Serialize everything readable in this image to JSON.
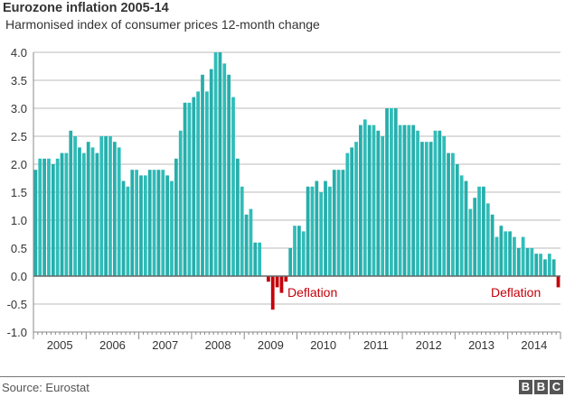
{
  "chart_data": {
    "type": "bar",
    "title": "Eurozone inflation 2005-14",
    "subtitle": "Harmonised index of consumer prices 12-month change",
    "xlabel": "",
    "ylabel": "",
    "ylim": [
      -1.0,
      4.0
    ],
    "yticks": [
      "4.0",
      "3.5",
      "3.0",
      "2.5",
      "2.0",
      "1.5",
      "1.0",
      "0.5",
      "0.0",
      "-0.5",
      "-1.0"
    ],
    "ytick_values": [
      4.0,
      3.5,
      3.0,
      2.5,
      2.0,
      1.5,
      1.0,
      0.5,
      0.0,
      -0.5,
      -1.0
    ],
    "grid": true,
    "x_start": "2005-01",
    "x_frequency": "monthly",
    "year_labels": [
      "2005",
      "2006",
      "2007",
      "2008",
      "2009",
      "2010",
      "2011",
      "2012",
      "2013",
      "2014"
    ],
    "values": [
      1.9,
      2.1,
      2.1,
      2.1,
      2.0,
      2.1,
      2.2,
      2.2,
      2.6,
      2.5,
      2.3,
      2.2,
      2.4,
      2.3,
      2.2,
      2.5,
      2.5,
      2.5,
      2.4,
      2.3,
      1.7,
      1.6,
      1.9,
      1.9,
      1.8,
      1.8,
      1.9,
      1.9,
      1.9,
      1.9,
      1.8,
      1.7,
      2.1,
      2.6,
      3.1,
      3.1,
      3.2,
      3.3,
      3.6,
      3.3,
      3.7,
      4.0,
      4.0,
      3.8,
      3.6,
      3.2,
      2.1,
      1.6,
      1.1,
      1.2,
      0.6,
      0.6,
      0.0,
      -0.1,
      -0.6,
      -0.2,
      -0.3,
      -0.1,
      0.5,
      0.9,
      0.9,
      0.8,
      1.6,
      1.6,
      1.7,
      1.5,
      1.7,
      1.6,
      1.9,
      1.9,
      1.9,
      2.2,
      2.3,
      2.4,
      2.7,
      2.8,
      2.7,
      2.7,
      2.6,
      2.5,
      3.0,
      3.0,
      3.0,
      2.7,
      2.7,
      2.7,
      2.7,
      2.6,
      2.4,
      2.4,
      2.4,
      2.6,
      2.6,
      2.5,
      2.2,
      2.2,
      2.0,
      1.8,
      1.7,
      1.2,
      1.4,
      1.6,
      1.6,
      1.3,
      1.1,
      0.7,
      0.9,
      0.8,
      0.8,
      0.7,
      0.5,
      0.7,
      0.5,
      0.5,
      0.4,
      0.4,
      0.3,
      0.4,
      0.3,
      -0.2
    ],
    "annotations": [
      "Deflation",
      "Deflation"
    ],
    "colors": {
      "positive": "#26aeab",
      "negative": "#c4000a",
      "grid": "#bbbbbb",
      "axis": "#888888"
    }
  },
  "footer": {
    "source": "Source: Eurostat",
    "logo": [
      "B",
      "B",
      "C"
    ]
  }
}
